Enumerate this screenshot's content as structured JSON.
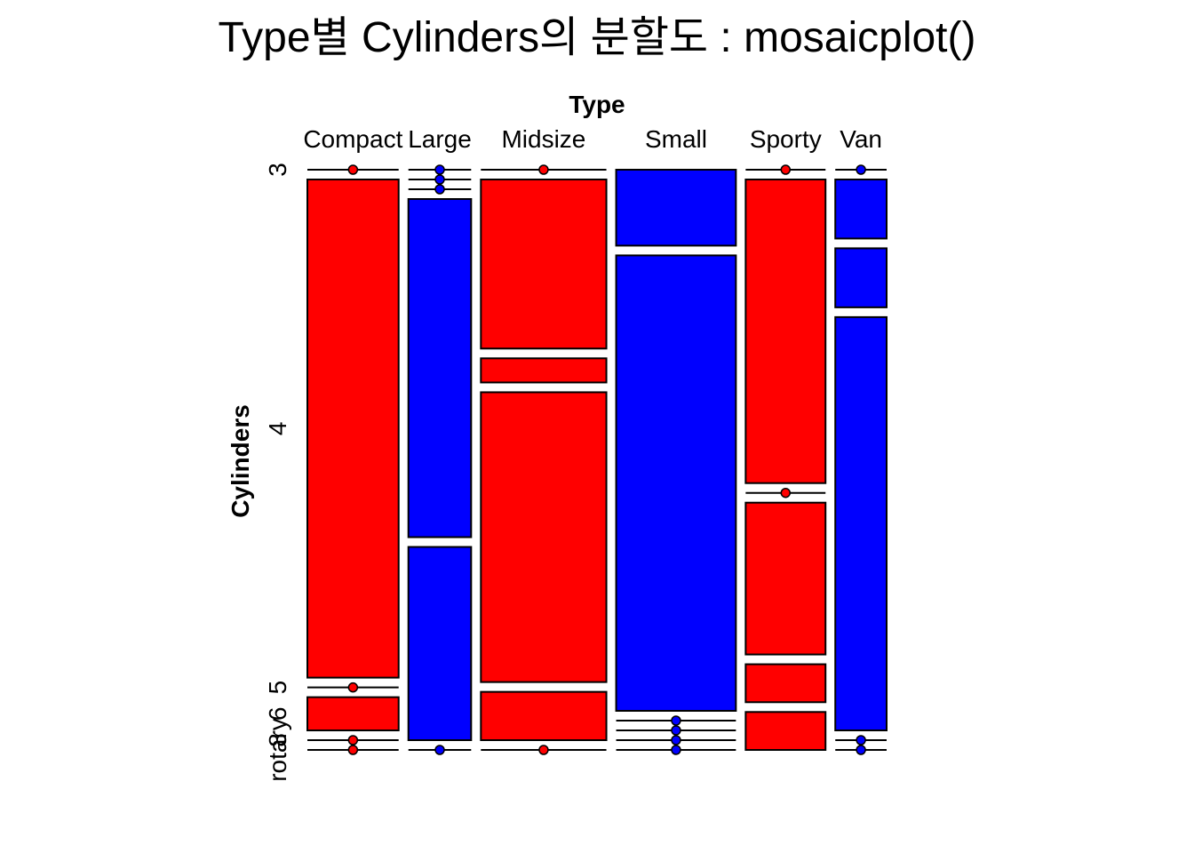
{
  "chart_data": {
    "type": "mosaic",
    "title": "Type별 Cylinders의 분할도 : mosaicplot()",
    "xlabel": "Type",
    "ylabel": "Cylinders",
    "x_categories": [
      "Compact",
      "Large",
      "Midsize",
      "Small",
      "Sporty",
      "Van"
    ],
    "y_levels": [
      "3",
      "4",
      "5",
      "6",
      "8",
      "rotary"
    ],
    "y_level_labels": [
      "3",
      "4",
      "5",
      "6",
      "8",
      "rotary"
    ],
    "counts": [
      {
        "type": "Compact",
        "values": [
          0,
          15,
          0,
          1,
          0,
          0
        ]
      },
      {
        "type": "Large",
        "values": [
          0,
          0,
          0,
          7,
          4,
          0
        ]
      },
      {
        "type": "Midsize",
        "values": [
          0,
          7,
          1,
          12,
          2,
          0
        ]
      },
      {
        "type": "Small",
        "values": [
          3,
          18,
          0,
          0,
          0,
          0
        ]
      },
      {
        "type": "Sporty",
        "values": [
          0,
          8,
          0,
          4,
          1,
          1
        ]
      },
      {
        "type": "Van",
        "values": [
          0,
          1,
          1,
          7,
          0,
          0
        ]
      }
    ],
    "colors": {
      "Compact": "#ff0000",
      "Large": "#0000ff",
      "Midsize": "#ff0000",
      "Small": "#0000ff",
      "Sporty": "#ff0000",
      "Van": "#0000ff"
    }
  }
}
